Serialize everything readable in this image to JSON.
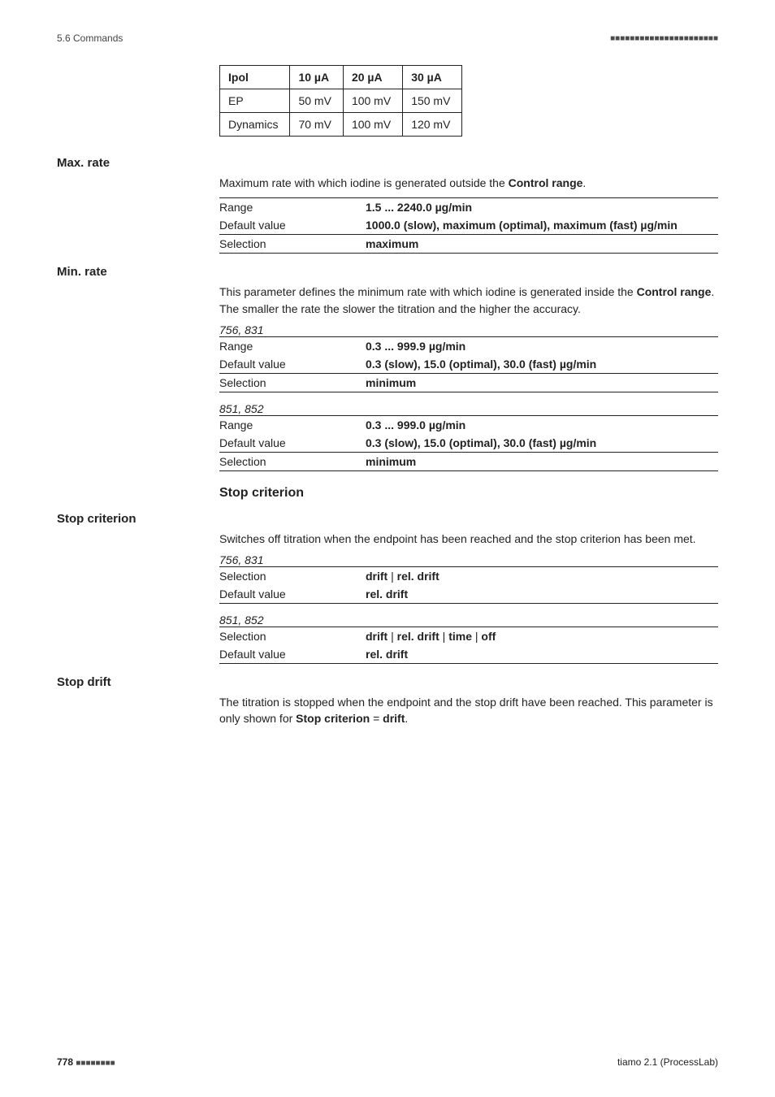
{
  "runhead": {
    "left": "5.6 Commands",
    "right_dots": "■■■■■■■■■■■■■■■■■■■■■■"
  },
  "ipol_table": {
    "headers": [
      "Ipol",
      "10 µA",
      "20 µA",
      "30 µA"
    ],
    "rows": [
      [
        "EP",
        "50 mV",
        "100 mV",
        "150 mV"
      ],
      [
        "Dynamics",
        "70 mV",
        "100 mV",
        "120 mV"
      ]
    ]
  },
  "max_rate": {
    "label": "Max. rate",
    "para_pre": "Maximum rate with which iodine is generated outside the ",
    "para_bold": "Control range",
    "para_post": ".",
    "kv": [
      {
        "k": "Range",
        "v": "1.5 ... 2240.0 µg/min",
        "bold": true
      },
      {
        "k": "Default value",
        "v": "1000.0 (slow), maximum (optimal), maximum (fast) µg/min",
        "bold": true
      },
      {
        "k": "Selection",
        "v": "maximum",
        "bold": true
      }
    ]
  },
  "min_rate": {
    "label": "Min. rate",
    "para_pre": "This parameter defines the minimum rate with which iodine is generated inside the ",
    "para_bold": "Control range",
    "para_post": ". The smaller the rate the slower the titration and the higher the accuracy.",
    "groups": [
      {
        "title": "756, 831",
        "kv": [
          {
            "k": "Range",
            "v": "0.3 ... 999.9 µg/min",
            "bold": true
          },
          {
            "k": "Default value",
            "v": "0.3 (slow), 15.0 (optimal), 30.0 (fast) µg/min",
            "bold": true
          },
          {
            "k": "Selection",
            "v": "minimum",
            "bold": true
          }
        ]
      },
      {
        "title": "851, 852",
        "kv": [
          {
            "k": "Range",
            "v": "0.3 ... 999.0 µg/min",
            "bold": true
          },
          {
            "k": "Default value",
            "v": "0.3 (slow), 15.0 (optimal), 30.0 (fast) µg/min",
            "bold": true
          },
          {
            "k": "Selection",
            "v": "minimum",
            "bold": true
          }
        ]
      }
    ]
  },
  "stop_criterion": {
    "heading": "Stop criterion",
    "label": "Stop criterion",
    "para": "Switches off titration when the endpoint has been reached and the stop criterion has been met.",
    "groups": [
      {
        "title": "756, 831",
        "kv": [
          {
            "k": "Selection",
            "v_html": "<span class='b'>drift</span> | <span class='b'>rel. drift</span>"
          },
          {
            "k": "Default value",
            "v": "rel. drift",
            "bold": true
          }
        ]
      },
      {
        "title": "851, 852",
        "kv": [
          {
            "k": "Selection",
            "v_html": "<span class='b'>drift</span> | <span class='b'>rel. drift</span> | <span class='b'>time</span> | <span class='b'>off</span>"
          },
          {
            "k": "Default value",
            "v": "rel. drift",
            "bold": true
          }
        ]
      }
    ]
  },
  "stop_drift": {
    "label": "Stop drift",
    "para_pre": "The titration is stopped when the endpoint and the stop drift have been reached. This parameter is only shown for ",
    "para_bold1": "Stop criterion",
    "para_mid": " = ",
    "para_bold2": "drift",
    "para_post": "."
  },
  "footer": {
    "page": "778",
    "dots": "■■■■■■■■",
    "product": "tiamo 2.1 (ProcessLab)"
  }
}
